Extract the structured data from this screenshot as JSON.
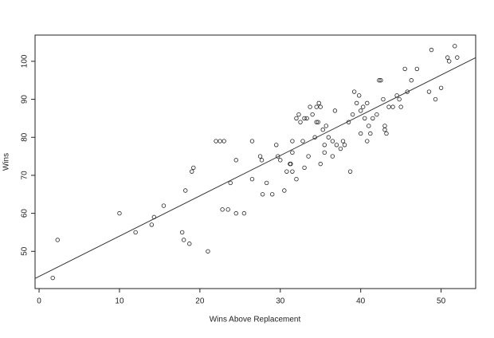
{
  "chart_data": {
    "type": "scatter",
    "xlabel": "Wins Above Replacement",
    "ylabel": "Wins",
    "xlim": [
      -0.5,
      54.3
    ],
    "ylim": [
      40.2,
      106.9
    ],
    "xticks": [
      0,
      10,
      20,
      30,
      40,
      50
    ],
    "yticks": [
      50,
      60,
      70,
      80,
      90,
      100
    ],
    "color": "#222222",
    "fit": {
      "intercept": 43.4,
      "slope": 1.06
    },
    "x": [
      1.7,
      2.3,
      10,
      12,
      14,
      14.3,
      15.5,
      17.8,
      18,
      18.2,
      18.7,
      19,
      19.2,
      21,
      22,
      22.5,
      22.8,
      23,
      23.5,
      23.8,
      24.5,
      24.5,
      25.5,
      26.5,
      26.5,
      27.5,
      27.7,
      27.8,
      28.3,
      29,
      29.5,
      29.7,
      30,
      30.5,
      30.8,
      31.2,
      31.3,
      31.5,
      31.5,
      31.5,
      32,
      32,
      32.3,
      32.5,
      32.8,
      33,
      33,
      33.3,
      33.5,
      33.7,
      34,
      34.3,
      34.5,
      34.5,
      34.7,
      34.8,
      35,
      35,
      35.3,
      35.5,
      35.5,
      35.7,
      36,
      36.5,
      36.5,
      36.8,
      37,
      37.5,
      37.8,
      38,
      38.5,
      38.7,
      39,
      39.2,
      39.5,
      39.8,
      40,
      40,
      40.3,
      40.5,
      40.8,
      40.8,
      41,
      41.2,
      41.5,
      42,
      42.3,
      42.5,
      42.8,
      43,
      43,
      43.2,
      43.5,
      44,
      44.5,
      44.8,
      45,
      45.5,
      45.8,
      46.3,
      47,
      48.5,
      48.8,
      49.3,
      50,
      50.8,
      51,
      51.7,
      52
    ],
    "values": [
      43,
      53,
      60,
      55,
      57,
      59,
      62,
      55,
      53,
      66,
      52,
      71,
      72,
      50,
      79,
      79,
      61,
      79,
      61,
      68,
      74,
      60,
      60,
      69,
      79,
      75,
      74,
      65,
      68,
      65,
      78,
      75,
      74,
      66,
      71,
      73,
      73,
      71,
      79,
      76,
      69,
      85,
      86,
      84,
      79,
      72,
      85,
      85,
      75,
      88,
      86,
      80,
      84,
      88,
      84,
      89,
      73,
      88,
      82,
      78,
      76,
      83,
      80,
      79,
      75,
      87,
      78,
      77,
      79,
      78,
      84,
      71,
      86,
      92,
      89,
      91,
      81,
      87,
      88,
      85,
      89,
      79,
      83,
      81,
      85,
      86,
      95,
      95,
      90,
      83,
      82,
      81,
      88,
      88,
      91,
      90,
      88,
      98,
      92,
      95,
      98,
      92,
      103,
      90,
      93,
      101,
      100,
      104,
      101
    ]
  }
}
